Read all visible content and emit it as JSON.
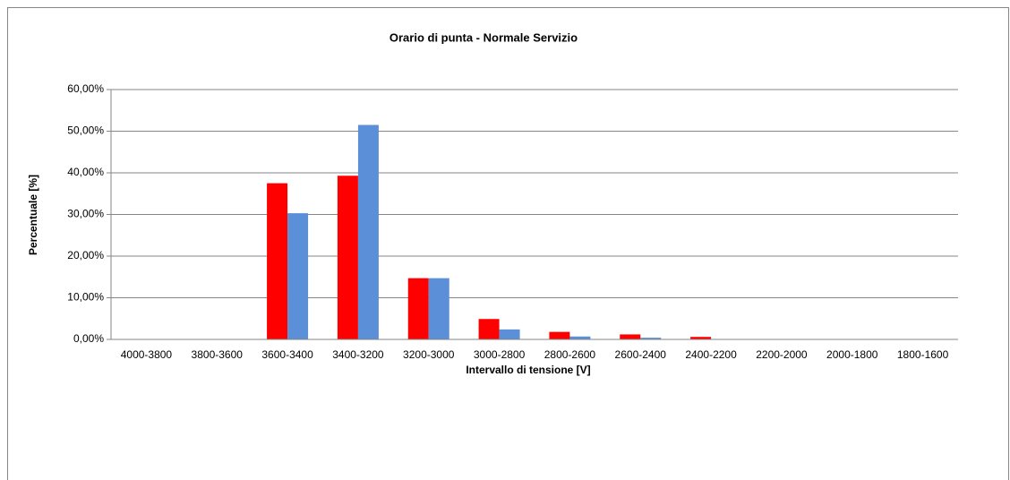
{
  "chart_data": {
    "type": "bar",
    "title": "Orario di punta - Normale Servizio",
    "x_label": "Intervallo di tensione  [V]",
    "y_label": "Percentuale [%]",
    "categories": [
      "4000-3800",
      "3800-3600",
      "3600-3400",
      "3400-3200",
      "3200-3000",
      "3000-2800",
      "2800-2600",
      "2600-2400",
      "2400-2200",
      "2200-2000",
      "2000-1800",
      "1800-1600"
    ],
    "series": [
      {
        "color": "#ff0000",
        "values": [
          0,
          0,
          37.5,
          39.3,
          14.7,
          4.9,
          1.8,
          1.2,
          0.6,
          0,
          0,
          0
        ]
      },
      {
        "color": "#5b8fd8",
        "values": [
          0,
          0,
          30.3,
          51.5,
          14.7,
          2.4,
          0.7,
          0.4,
          0.1,
          0,
          0,
          0
        ]
      }
    ],
    "ylim": [
      0,
      60
    ],
    "yticks": [
      {
        "value": 0,
        "label": "0,00%"
      },
      {
        "value": 10,
        "label": "10,00%"
      },
      {
        "value": 20,
        "label": "20,00%"
      },
      {
        "value": 30,
        "label": "30,00%"
      },
      {
        "value": 40,
        "label": "40,00%"
      },
      {
        "value": 50,
        "label": "50,00%"
      },
      {
        "value": 60,
        "label": "60,00%"
      }
    ],
    "grid": true
  }
}
